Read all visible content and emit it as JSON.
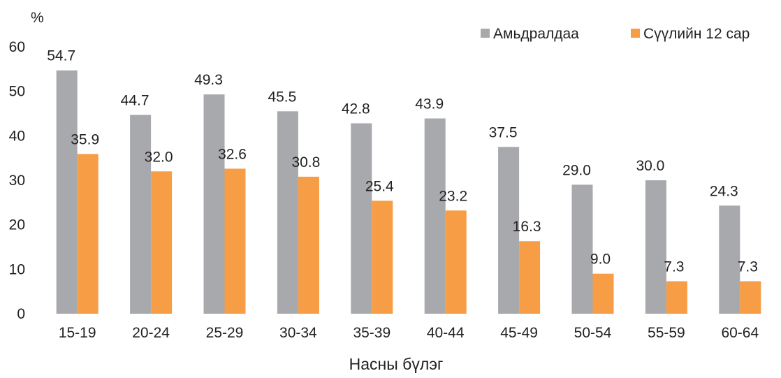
{
  "chart_data": {
    "type": "bar",
    "title": "",
    "ylabel": "%",
    "xlabel": "Насны бүлэг",
    "ylim": [
      0,
      60
    ],
    "yticks": [
      0,
      10,
      20,
      30,
      40,
      50,
      60
    ],
    "grid": false,
    "legend_position": "top-right",
    "categories": [
      "15-19",
      "20-24",
      "25-29",
      "30-34",
      "35-39",
      "40-44",
      "45-49",
      "50-54",
      "55-59",
      "60-64"
    ],
    "series": [
      {
        "name": "Амьдралдаа",
        "color": "#a7a9ac",
        "values": [
          54.7,
          44.7,
          49.3,
          45.5,
          42.8,
          43.9,
          37.5,
          29.0,
          30.0,
          24.3
        ],
        "labels": [
          "54.7",
          "44.7",
          "49.3",
          "45.5",
          "42.8",
          "43.9",
          "37.5",
          "29.0",
          "30.0",
          "24.3"
        ]
      },
      {
        "name": "Сүүлийн 12 сар",
        "color": "#f79d45",
        "values": [
          35.9,
          32.0,
          32.6,
          30.8,
          25.4,
          23.2,
          16.3,
          9.0,
          7.3,
          7.3
        ],
        "labels": [
          "35.9",
          "32.0",
          "32.6",
          "30.8",
          "25.4",
          "23.2",
          "16.3",
          "9.0",
          "7.3",
          "7.3"
        ]
      }
    ]
  }
}
